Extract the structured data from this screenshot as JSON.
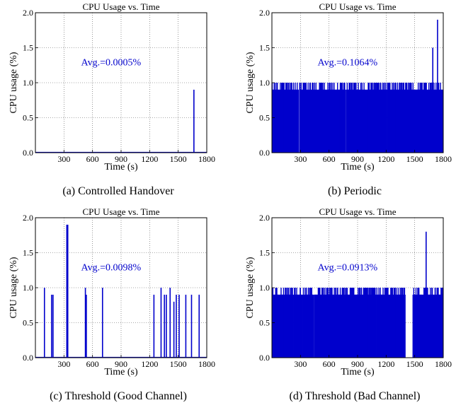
{
  "chart_data": [
    {
      "type": "bar",
      "title": "CPU Usage vs. Time",
      "xlabel": "Time (s)",
      "ylabel": "CPU usage (%)",
      "annotation": "Avg.=0.0005%",
      "caption": "(a) Controlled Handover",
      "xlim": [
        0,
        1800
      ],
      "ylim": [
        0,
        2.0
      ],
      "xticks": [
        300,
        600,
        900,
        1200,
        1500,
        1800
      ],
      "yticks": [
        "0.0",
        "0.5",
        "1.0",
        "1.5",
        "2.0"
      ],
      "grid": true,
      "color": "#0000cc",
      "pattern": "sparse",
      "spikes": [
        [
          1665,
          0.9
        ]
      ]
    },
    {
      "type": "bar",
      "title": "CPU Usage vs. Time",
      "xlabel": "Time (s)",
      "ylabel": "CPU usage (%)",
      "annotation": "Avg.=0.1064%",
      "caption": "(b) Periodic",
      "xlim": [
        0,
        1800
      ],
      "ylim": [
        0,
        2.0
      ],
      "xticks": [
        300,
        600,
        900,
        1200,
        1500,
        1800
      ],
      "yticks": [
        "0.0",
        "0.5",
        "1.0",
        "1.5",
        "2.0"
      ],
      "grid": true,
      "color": "#0000cc",
      "pattern": "dense",
      "spikes": [
        [
          1740,
          1.9
        ],
        [
          1690,
          1.5
        ]
      ]
    },
    {
      "type": "bar",
      "title": "CPU Usage vs. Time",
      "xlabel": "Time (s)",
      "ylabel": "CPU usage (%)",
      "annotation": "Avg.=0.0098%",
      "caption": "(c) Threshold (Good Channel)",
      "xlim": [
        0,
        1800
      ],
      "ylim": [
        0,
        2.0
      ],
      "xticks": [
        300,
        600,
        900,
        1200,
        1500,
        1800
      ],
      "yticks": [
        "0.0",
        "0.5",
        "1.0",
        "1.5",
        "2.0"
      ],
      "grid": true,
      "color": "#0000cc",
      "pattern": "sparse",
      "spikes": [
        [
          95,
          1.0
        ],
        [
          170,
          0.9
        ],
        [
          185,
          0.9
        ],
        [
          330,
          1.9
        ],
        [
          340,
          1.9
        ],
        [
          525,
          1.0
        ],
        [
          535,
          0.9
        ],
        [
          705,
          1.0
        ],
        [
          1245,
          0.9
        ],
        [
          1320,
          1.0
        ],
        [
          1355,
          0.9
        ],
        [
          1375,
          0.9
        ],
        [
          1415,
          1.0
        ],
        [
          1455,
          0.8
        ],
        [
          1480,
          0.9
        ],
        [
          1510,
          0.9
        ],
        [
          1580,
          0.9
        ],
        [
          1640,
          0.9
        ],
        [
          1720,
          0.9
        ]
      ]
    },
    {
      "type": "bar",
      "title": "CPU Usage vs. Time",
      "xlabel": "Time (s)",
      "ylabel": "CPU usage (%)",
      "annotation": "Avg.=0.0913%",
      "caption": "(d) Threshold (Bad Channel)",
      "xlim": [
        0,
        1800
      ],
      "ylim": [
        0,
        2.0
      ],
      "xticks": [
        300,
        600,
        900,
        1200,
        1500,
        1800
      ],
      "yticks": [
        "0.0",
        "0.5",
        "1.0",
        "1.5",
        "2.0"
      ],
      "grid": true,
      "color": "#0000cc",
      "pattern": "dense-gap",
      "gap": [
        1400,
        1480
      ],
      "spikes": [
        [
          1620,
          1.8
        ]
      ]
    }
  ]
}
